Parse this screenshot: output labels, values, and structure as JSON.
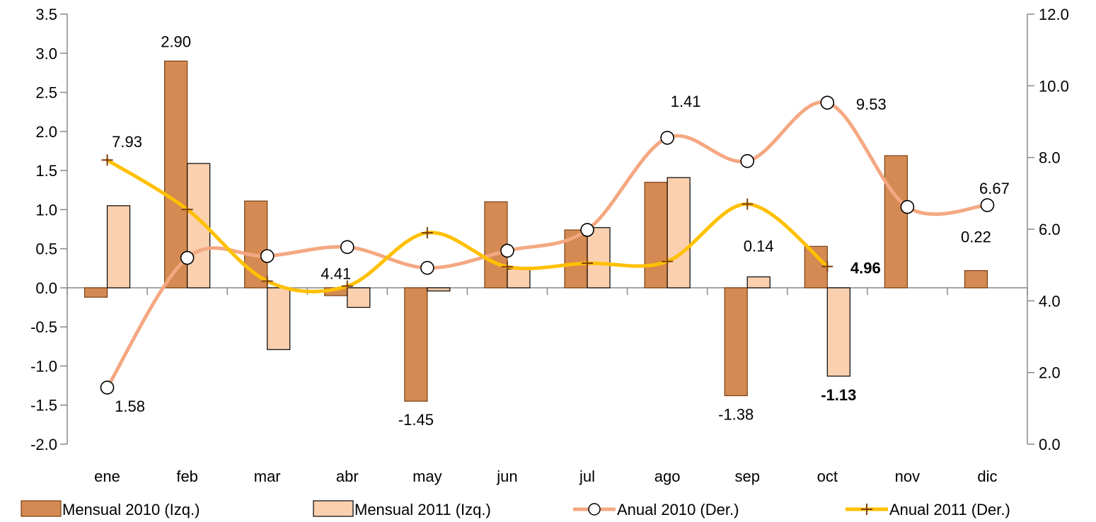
{
  "chart_data": {
    "type": "bar",
    "categories": [
      "ene",
      "feb",
      "mar",
      "abr",
      "may",
      "jun",
      "jul",
      "ago",
      "sep",
      "oct",
      "nov",
      "dic"
    ],
    "y_left": {
      "range": [
        -2.0,
        3.5
      ],
      "ticks": [
        -2.0,
        -1.5,
        -1.0,
        -0.5,
        0.0,
        0.5,
        1.0,
        1.5,
        2.0,
        2.5,
        3.0,
        3.5
      ],
      "tick_labels": [
        "-2.0",
        "-1.5",
        "-1.0",
        "-0.5",
        "0.0",
        "0.5",
        "1.0",
        "1.5",
        "2.0",
        "2.5",
        "3.0",
        "3.5"
      ]
    },
    "y_right": {
      "range": [
        0.0,
        12.0
      ],
      "ticks": [
        0.0,
        2.0,
        4.0,
        6.0,
        8.0,
        10.0,
        12.0
      ],
      "tick_labels": [
        "0.0",
        "2.0",
        "4.0",
        "6.0",
        "8.0",
        "10.0",
        "12.0"
      ]
    },
    "grid": false,
    "legend_position": "bottom",
    "series": [
      {
        "name": "Mensual 2010 (Izq.)",
        "type": "bar",
        "axis": "left",
        "color": "#D48A52",
        "stroke": "#7A3F12",
        "values": [
          -0.12,
          2.9,
          1.11,
          -0.1,
          -1.45,
          1.1,
          0.74,
          1.35,
          -1.38,
          0.53,
          1.69,
          0.22
        ],
        "labels": [
          {
            "index": 1,
            "text": "2.90"
          },
          {
            "index": 4,
            "text": "-1.45"
          },
          {
            "index": 8,
            "text": "-1.38"
          },
          {
            "index": 11,
            "text": "0.22"
          }
        ]
      },
      {
        "name": "Mensual 2011 (Izq.)",
        "type": "bar",
        "axis": "left",
        "color": "#FBD0AF",
        "stroke": "#000000",
        "values": [
          1.05,
          1.59,
          -0.79,
          -0.25,
          -0.04,
          0.24,
          0.77,
          1.41,
          0.14,
          -1.13,
          null,
          null
        ],
        "labels": [
          {
            "index": 7,
            "text": "1.41"
          },
          {
            "index": 8,
            "text": "0.14"
          },
          {
            "index": 9,
            "text": "-1.13",
            "bold": true
          }
        ]
      },
      {
        "name": "Anual 2010 (Der.)",
        "type": "line",
        "axis": "right",
        "color": "#F4A882",
        "marker": "circle",
        "values": [
          1.58,
          5.2,
          5.25,
          5.5,
          4.92,
          5.4,
          5.98,
          8.55,
          7.9,
          9.53,
          6.62,
          6.67
        ],
        "labels": [
          {
            "index": 0,
            "text": "1.58"
          },
          {
            "index": 9,
            "text": "9.53"
          },
          {
            "index": 11,
            "text": "6.67"
          }
        ]
      },
      {
        "name": "Anual 2011 (Der.)",
        "type": "line",
        "axis": "right",
        "color": "#FFC000",
        "marker": "plus",
        "values": [
          7.93,
          6.55,
          4.55,
          4.41,
          5.9,
          4.95,
          5.05,
          5.1,
          6.7,
          4.96,
          null,
          null
        ],
        "labels": [
          {
            "index": 0,
            "text": "7.93"
          },
          {
            "index": 3,
            "text": "4.41"
          },
          {
            "index": 9,
            "text": "4.96",
            "bold": true
          }
        ]
      }
    ]
  }
}
